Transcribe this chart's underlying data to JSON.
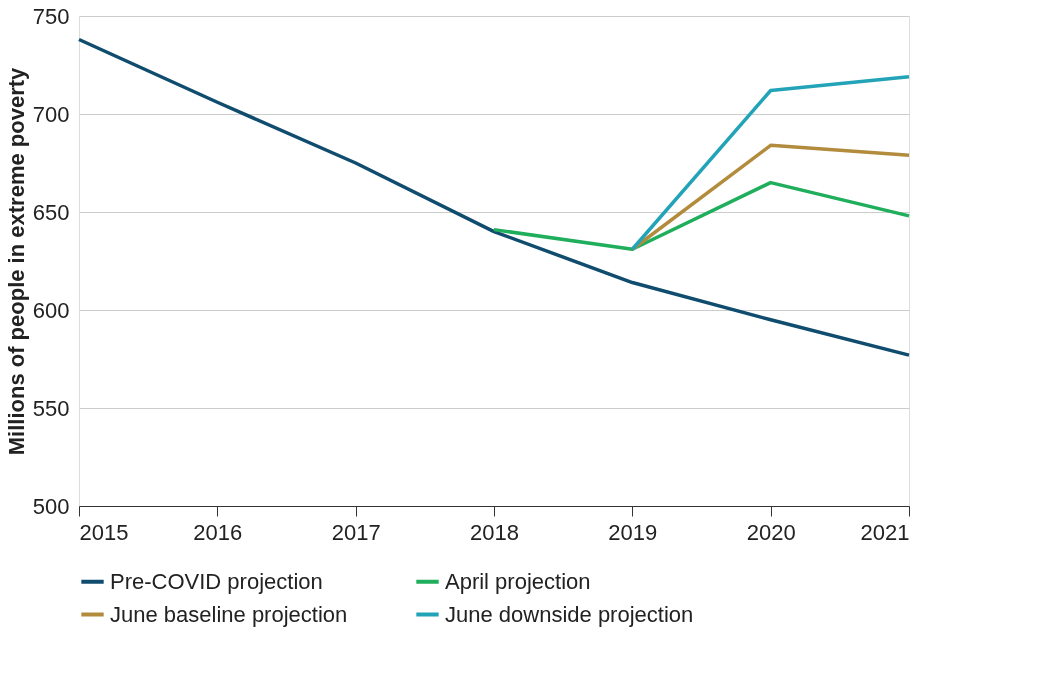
{
  "chart_data": {
    "type": "line",
    "ylabel": "Millions of people in extreme poverty",
    "xlim": [
      2015,
      2021
    ],
    "xticks": [
      2015,
      2016,
      2017,
      2018,
      2019,
      2020,
      2021
    ],
    "ylim": [
      500,
      750
    ],
    "yticks": [
      500,
      550,
      600,
      650,
      700,
      750
    ],
    "grid": "y",
    "legend": "bottom",
    "marker": "none",
    "line_style": "solid",
    "series": [
      {
        "name": "Pre-COVID projection",
        "color": "#0f4c6e",
        "x": [
          2015,
          2016,
          2017,
          2018,
          2019,
          2020,
          2021
        ],
        "values": [
          738,
          706,
          675,
          640,
          614,
          595,
          577
        ]
      },
      {
        "name": "April projection",
        "color": "#1fae5b",
        "x": [
          2018,
          2019,
          2020,
          2021
        ],
        "values": [
          641,
          631,
          665,
          648
        ]
      },
      {
        "name": "June baseline projection",
        "color": "#b38b3d",
        "x": [
          2019,
          2020,
          2021
        ],
        "values": [
          631,
          684,
          679
        ]
      },
      {
        "name": "June downside projection",
        "color": "#22a3b8",
        "x": [
          2019,
          2020,
          2021
        ],
        "values": [
          631,
          712,
          719
        ]
      }
    ]
  }
}
